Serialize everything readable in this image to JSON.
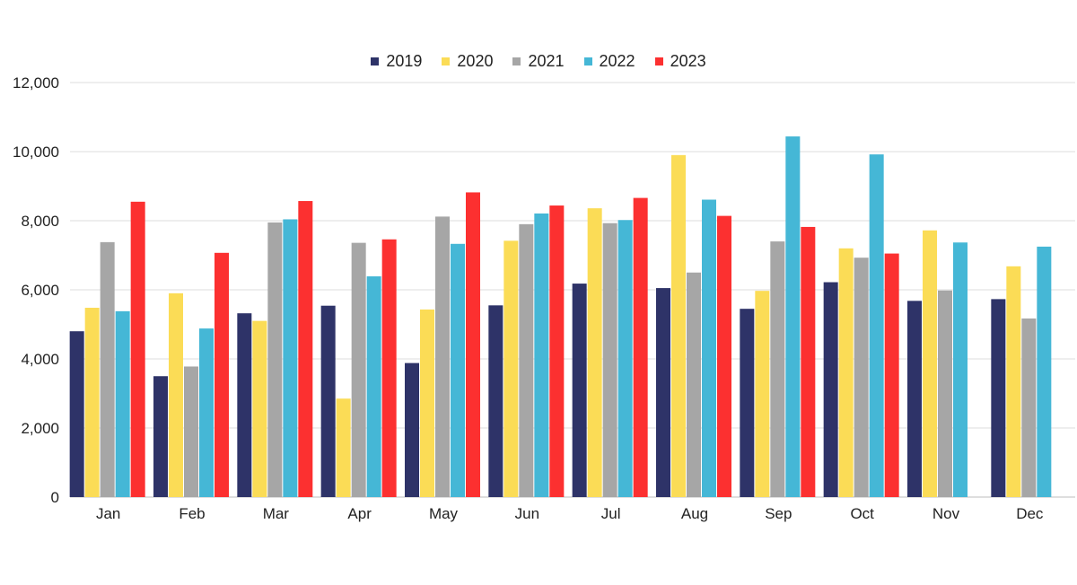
{
  "chart_data": {
    "type": "bar",
    "title": "",
    "xlabel": "",
    "ylabel": "",
    "ylim": [
      0,
      12000
    ],
    "yticks": [
      0,
      2000,
      4000,
      6000,
      8000,
      10000,
      12000
    ],
    "ytick_labels": [
      "0",
      "2,000",
      "4,000",
      "6,000",
      "8,000",
      "10,000",
      "12,000"
    ],
    "grid": true,
    "legend_position": "top-center",
    "categories": [
      "Jan",
      "Feb",
      "Mar",
      "Apr",
      "May",
      "Jun",
      "Jul",
      "Aug",
      "Sep",
      "Oct",
      "Nov",
      "Dec"
    ],
    "series": [
      {
        "name": "2019",
        "color": "#2e3368",
        "values": [
          4800,
          3500,
          5320,
          5540,
          3880,
          5550,
          6180,
          6050,
          5450,
          6220,
          5680,
          5730
        ]
      },
      {
        "name": "2020",
        "color": "#fbdc56",
        "values": [
          5480,
          5900,
          5100,
          2850,
          5430,
          7420,
          8360,
          9900,
          5970,
          7200,
          7720,
          6680
        ]
      },
      {
        "name": "2021",
        "color": "#a6a6a6",
        "values": [
          7380,
          3780,
          7950,
          7360,
          8120,
          7900,
          7930,
          6500,
          7400,
          6930,
          5980,
          5170
        ]
      },
      {
        "name": "2022",
        "color": "#45b7d6",
        "values": [
          5380,
          4880,
          8040,
          6390,
          7330,
          8210,
          8020,
          8610,
          10440,
          9920,
          7370,
          7250
        ]
      },
      {
        "name": "2023",
        "color": "#fc3030",
        "values": [
          8550,
          7070,
          8570,
          7460,
          8820,
          8440,
          8660,
          8140,
          7820,
          7050,
          null,
          null
        ]
      }
    ]
  }
}
